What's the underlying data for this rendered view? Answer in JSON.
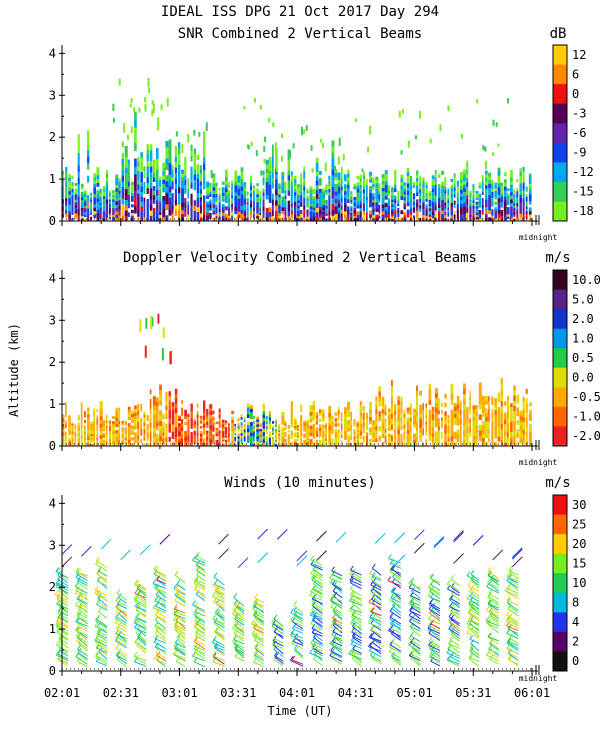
{
  "header": {
    "title_line1": "IDEAL ISS DPG  21 Oct 2017 Day 294",
    "title_line2": "SNR Combined 2 Vertical Beams"
  },
  "axis": {
    "ylabel": "Altitude (km)",
    "xlabel": "Time (UT)",
    "midnight_label": "midnight",
    "yticks": [
      "0",
      "1",
      "2",
      "3",
      "4"
    ],
    "xticks": [
      "02:01",
      "02:31",
      "03:01",
      "03:31",
      "04:01",
      "04:31",
      "05:01",
      "05:31",
      "06:01"
    ]
  },
  "chart_data": [
    {
      "type": "heatmap",
      "title": "SNR Combined 2 Vertical Beams",
      "xlabel": "Time (UT)",
      "ylabel": "Altitude (km)",
      "x_range": [
        "02:01",
        "06:01"
      ],
      "ylim": [
        0,
        4
      ],
      "colorbar": {
        "unit": "dB",
        "labels": [
          "12",
          "6",
          "0",
          "-3",
          "-6",
          "-9",
          "-12",
          "-15",
          "-18"
        ],
        "colors": [
          "#ffcc00",
          "#ff8800",
          "#ee1111",
          "#550055",
          "#6622aa",
          "#1144ee",
          "#00aaee",
          "#33cc55",
          "#77ee22"
        ]
      },
      "notes": "Echoes mostly 0-1.2 km altitude, sporadic up to ~3.8 km"
    },
    {
      "type": "heatmap",
      "title": "Doppler Velocity Combined 2 Vertical Beams",
      "xlabel": "Time (UT)",
      "ylabel": "Altitude (km)",
      "x_range": [
        "02:01",
        "06:01"
      ],
      "ylim": [
        0,
        4
      ],
      "colorbar": {
        "unit": "m/s",
        "labels": [
          "10.0",
          "5.0",
          "2.0",
          "1.0",
          "0.5",
          "0.0",
          "-0.5",
          "-1.0",
          "-2.0"
        ],
        "colors": [
          "#330022",
          "#552288",
          "#1133cc",
          "#0099ee",
          "#22cc44",
          "#dddd00",
          "#ffaa00",
          "#ff6600",
          "#ee2222"
        ]
      },
      "notes": "Mostly weak negative velocities (yellow/orange) below ~1.2 km"
    },
    {
      "type": "scatter",
      "title": "Winds (10 minutes)",
      "xlabel": "Time (UT)",
      "ylabel": "Altitude (km)",
      "x_range": [
        "02:01",
        "06:01"
      ],
      "ylim": [
        0,
        4
      ],
      "colorbar": {
        "unit": "m/s",
        "labels": [
          "30",
          "25",
          "20",
          "15",
          "10",
          "8",
          "4",
          "2",
          "0"
        ],
        "colors": [
          "#ee1111",
          "#ff6600",
          "#ffcc00",
          "#77ee22",
          "#22cc55",
          "#00bbdd",
          "#2233ee",
          "#550066",
          "#111111"
        ]
      },
      "notes": "Wind barbs every 10 minutes, mostly 10-20 m/s below 2.5 km"
    }
  ]
}
